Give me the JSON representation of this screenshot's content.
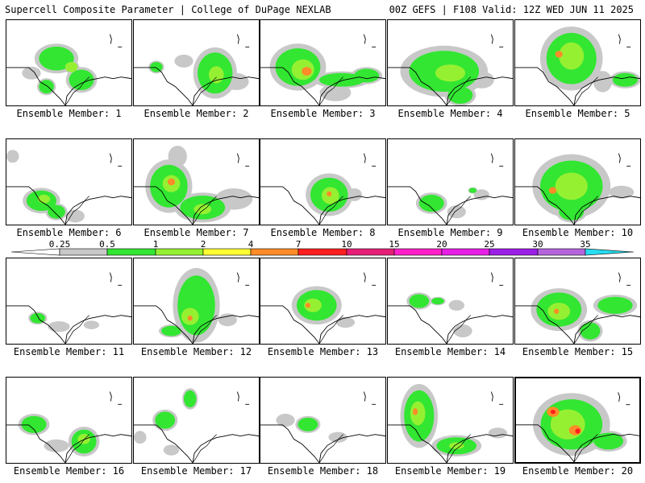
{
  "header": {
    "left": "Supercell Composite Parameter | College of DuPage NEXLAB",
    "right": "00Z GEFS | F108 Valid: 12Z WED JUN 11 2025"
  },
  "colorbar": {
    "labels": [
      "0.25",
      "0.5",
      "1",
      "2",
      "4",
      "7",
      "10",
      "15",
      "20",
      "25",
      "30",
      "35"
    ],
    "colors": [
      "#c8c8c8",
      "#32e632",
      "#96f032",
      "#ffff32",
      "#ff8c28",
      "#ff1e1e",
      "#e61e78",
      "#ff1ec8",
      "#e61ee6",
      "#9b1ee6",
      "#b464dc",
      "#28dcf0"
    ],
    "left_arrow_color": "#ffffff",
    "right_arrow_color": "#28dcf0"
  },
  "members": [
    {
      "caption": "Ensemble Member: 1",
      "blobs": [
        [
          0.4,
          0.45,
          0.14,
          0.14,
          1
        ],
        [
          0.6,
          0.7,
          0.1,
          0.12,
          1
        ],
        [
          0.52,
          0.55,
          0.05,
          0.06,
          2
        ],
        [
          0.32,
          0.78,
          0.06,
          0.08,
          1
        ],
        [
          0.2,
          0.62,
          0.06,
          0.06,
          0
        ]
      ]
    },
    {
      "caption": "Ensemble Member: 2",
      "blobs": [
        [
          0.65,
          0.62,
          0.14,
          0.24,
          1
        ],
        [
          0.66,
          0.64,
          0.06,
          0.1,
          2
        ],
        [
          0.18,
          0.55,
          0.05,
          0.06,
          1
        ],
        [
          0.4,
          0.48,
          0.06,
          0.06,
          0
        ],
        [
          0.82,
          0.72,
          0.08,
          0.08,
          0
        ]
      ]
    },
    {
      "caption": "Ensemble Member: 3",
      "blobs": [
        [
          0.3,
          0.55,
          0.18,
          0.22,
          1
        ],
        [
          0.34,
          0.58,
          0.09,
          0.12,
          2
        ],
        [
          0.37,
          0.6,
          0.04,
          0.05,
          4
        ],
        [
          0.65,
          0.7,
          0.18,
          0.08,
          1
        ],
        [
          0.85,
          0.65,
          0.1,
          0.08,
          1
        ],
        [
          0.6,
          0.85,
          0.1,
          0.08,
          0
        ]
      ]
    },
    {
      "caption": "Ensemble Member: 4",
      "blobs": [
        [
          0.45,
          0.6,
          0.28,
          0.24,
          1
        ],
        [
          0.5,
          0.62,
          0.12,
          0.1,
          2
        ],
        [
          0.58,
          0.88,
          0.1,
          0.1,
          1
        ],
        [
          0.75,
          0.7,
          0.08,
          0.08,
          0
        ]
      ]
    },
    {
      "caption": "Ensemble Member: 5",
      "blobs": [
        [
          0.45,
          0.45,
          0.2,
          0.3,
          1
        ],
        [
          0.45,
          0.42,
          0.1,
          0.16,
          2
        ],
        [
          0.35,
          0.4,
          0.03,
          0.04,
          4
        ],
        [
          0.88,
          0.7,
          0.1,
          0.08,
          1
        ],
        [
          0.7,
          0.72,
          0.06,
          0.1,
          0
        ]
      ]
    },
    {
      "caption": "Ensemble Member: 6",
      "blobs": [
        [
          0.28,
          0.72,
          0.12,
          0.12,
          1
        ],
        [
          0.3,
          0.7,
          0.05,
          0.05,
          2
        ],
        [
          0.4,
          0.85,
          0.07,
          0.08,
          1
        ],
        [
          0.55,
          0.9,
          0.06,
          0.06,
          0
        ],
        [
          0.05,
          0.2,
          0.04,
          0.06,
          0
        ]
      ]
    },
    {
      "caption": "Ensemble Member: 7",
      "blobs": [
        [
          0.28,
          0.55,
          0.15,
          0.25,
          1
        ],
        [
          0.3,
          0.52,
          0.07,
          0.1,
          2
        ],
        [
          0.3,
          0.5,
          0.03,
          0.04,
          4
        ],
        [
          0.55,
          0.8,
          0.18,
          0.14,
          1
        ],
        [
          0.55,
          0.82,
          0.07,
          0.06,
          2
        ],
        [
          0.8,
          0.7,
          0.12,
          0.1,
          0
        ],
        [
          0.35,
          0.2,
          0.06,
          0.1,
          0
        ]
      ]
    },
    {
      "caption": "Ensemble Member: 8",
      "blobs": [
        [
          0.55,
          0.65,
          0.15,
          0.2,
          1
        ],
        [
          0.56,
          0.66,
          0.07,
          0.1,
          2
        ],
        [
          0.55,
          0.64,
          0.02,
          0.03,
          4
        ],
        [
          0.75,
          0.65,
          0.05,
          0.06,
          0
        ]
      ]
    },
    {
      "caption": "Ensemble Member: 9",
      "blobs": [
        [
          0.35,
          0.75,
          0.1,
          0.1,
          1
        ],
        [
          0.55,
          0.85,
          0.06,
          0.06,
          0
        ],
        [
          0.75,
          0.65,
          0.05,
          0.05,
          0
        ],
        [
          0.68,
          0.6,
          0.03,
          0.03,
          1
        ]
      ]
    },
    {
      "caption": "Ensemble Member: 10",
      "blobs": [
        [
          0.45,
          0.55,
          0.25,
          0.3,
          1
        ],
        [
          0.45,
          0.55,
          0.13,
          0.16,
          2
        ],
        [
          0.3,
          0.6,
          0.03,
          0.04,
          4
        ],
        [
          0.45,
          0.85,
          0.1,
          0.1,
          1
        ],
        [
          0.85,
          0.62,
          0.08,
          0.06,
          0
        ]
      ]
    },
    {
      "caption": "Ensemble Member: 11",
      "blobs": [
        [
          0.25,
          0.7,
          0.06,
          0.06,
          1
        ],
        [
          0.42,
          0.8,
          0.07,
          0.05,
          0
        ],
        [
          0.68,
          0.78,
          0.05,
          0.04,
          0
        ]
      ]
    },
    {
      "caption": "Ensemble Member: 12",
      "blobs": [
        [
          0.5,
          0.55,
          0.15,
          0.35,
          1
        ],
        [
          0.45,
          0.68,
          0.07,
          0.1,
          2
        ],
        [
          0.45,
          0.7,
          0.02,
          0.03,
          4
        ],
        [
          0.3,
          0.85,
          0.08,
          0.06,
          1
        ],
        [
          0.75,
          0.72,
          0.06,
          0.06,
          0
        ]
      ]
    },
    {
      "caption": "Ensemble Member: 13",
      "blobs": [
        [
          0.45,
          0.55,
          0.16,
          0.18,
          1
        ],
        [
          0.42,
          0.55,
          0.07,
          0.08,
          2
        ],
        [
          0.38,
          0.55,
          0.02,
          0.03,
          4
        ],
        [
          0.68,
          0.75,
          0.06,
          0.05,
          0
        ]
      ]
    },
    {
      "caption": "Ensemble Member: 14",
      "blobs": [
        [
          0.25,
          0.5,
          0.08,
          0.08,
          1
        ],
        [
          0.4,
          0.5,
          0.05,
          0.04,
          1
        ],
        [
          0.55,
          0.55,
          0.05,
          0.05,
          0
        ],
        [
          0.6,
          0.85,
          0.06,
          0.06,
          0
        ]
      ]
    },
    {
      "caption": "Ensemble Member: 15",
      "blobs": [
        [
          0.35,
          0.6,
          0.18,
          0.2,
          1
        ],
        [
          0.35,
          0.62,
          0.09,
          0.1,
          2
        ],
        [
          0.33,
          0.62,
          0.02,
          0.03,
          4
        ],
        [
          0.8,
          0.55,
          0.14,
          0.1,
          1
        ],
        [
          0.6,
          0.85,
          0.08,
          0.1,
          1
        ]
      ]
    },
    {
      "caption": "Ensemble Member: 16",
      "blobs": [
        [
          0.22,
          0.55,
          0.1,
          0.1,
          1
        ],
        [
          0.62,
          0.75,
          0.1,
          0.14,
          1
        ],
        [
          0.62,
          0.72,
          0.05,
          0.06,
          2
        ],
        [
          0.4,
          0.8,
          0.08,
          0.06,
          0
        ]
      ]
    },
    {
      "caption": "Ensemble Member: 17",
      "blobs": [
        [
          0.25,
          0.5,
          0.08,
          0.1,
          1
        ],
        [
          0.45,
          0.25,
          0.05,
          0.1,
          1
        ],
        [
          0.3,
          0.85,
          0.05,
          0.05,
          0
        ],
        [
          0.05,
          0.7,
          0.04,
          0.06,
          0
        ]
      ]
    },
    {
      "caption": "Ensemble Member: 18",
      "blobs": [
        [
          0.38,
          0.55,
          0.08,
          0.08,
          1
        ],
        [
          0.2,
          0.5,
          0.06,
          0.06,
          0
        ],
        [
          0.62,
          0.7,
          0.06,
          0.05,
          0
        ]
      ]
    },
    {
      "caption": "Ensemble Member: 19",
      "blobs": [
        [
          0.25,
          0.45,
          0.12,
          0.3,
          1
        ],
        [
          0.24,
          0.42,
          0.06,
          0.14,
          2
        ],
        [
          0.22,
          0.4,
          0.02,
          0.04,
          4
        ],
        [
          0.55,
          0.8,
          0.16,
          0.1,
          1
        ],
        [
          0.55,
          0.8,
          0.06,
          0.04,
          2
        ],
        [
          0.88,
          0.65,
          0.06,
          0.05,
          0
        ]
      ]
    },
    {
      "caption": "Ensemble Member: 20",
      "blobs": [
        [
          0.45,
          0.55,
          0.25,
          0.3,
          1
        ],
        [
          0.42,
          0.55,
          0.14,
          0.18,
          2
        ],
        [
          0.3,
          0.4,
          0.05,
          0.06,
          4
        ],
        [
          0.48,
          0.62,
          0.05,
          0.06,
          4
        ],
        [
          0.3,
          0.4,
          0.02,
          0.025,
          5
        ],
        [
          0.5,
          0.63,
          0.02,
          0.03,
          5
        ],
        [
          0.75,
          0.75,
          0.12,
          0.1,
          1
        ]
      ]
    }
  ]
}
